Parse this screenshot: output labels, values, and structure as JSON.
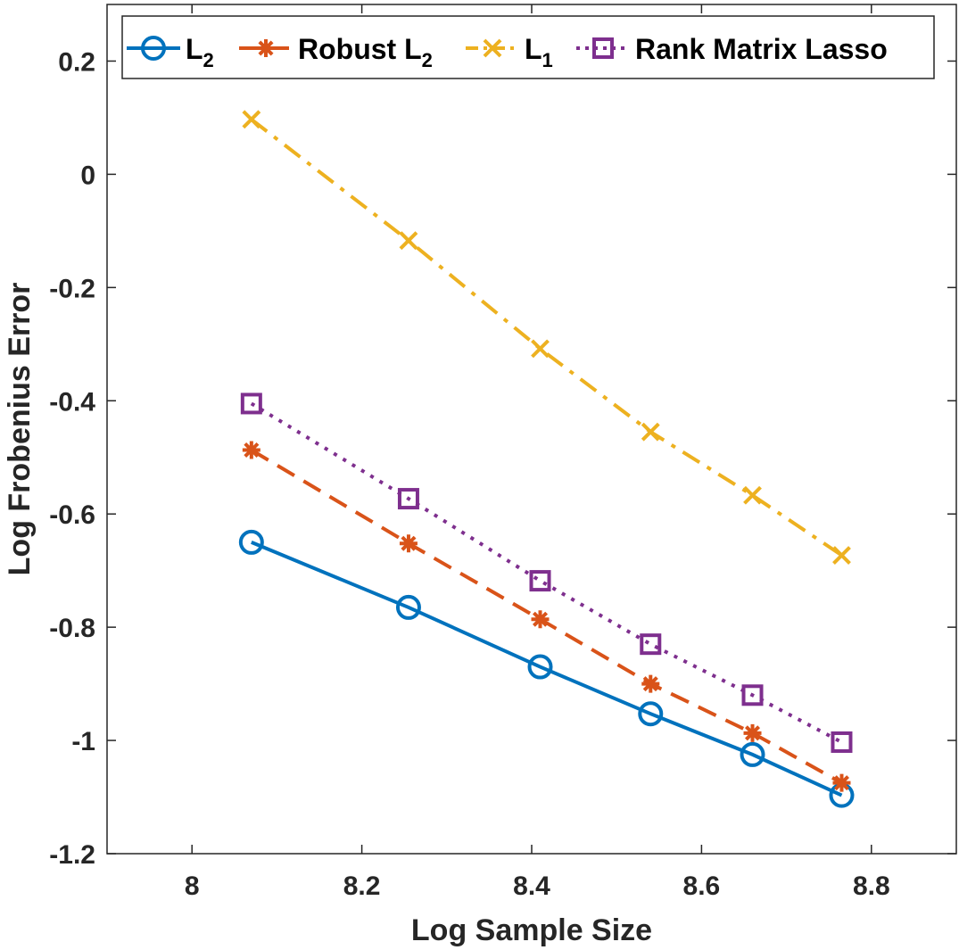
{
  "chart_data": {
    "type": "line",
    "title": "",
    "xlabel": "Log Sample Size",
    "ylabel": "Log Frobenius Error",
    "xlim": [
      7.9,
      8.9
    ],
    "ylim": [
      -1.2,
      0.3
    ],
    "xticks": [
      "8",
      "8.2",
      "8.4",
      "8.6",
      "8.8"
    ],
    "yticks": [
      "0.2",
      "0",
      "-0.2",
      "-0.4",
      "-0.6",
      "-0.8",
      "-1",
      "-1.2"
    ],
    "grid": false,
    "legend_position": "top",
    "x": [
      8.07,
      8.255,
      8.41,
      8.54,
      8.66,
      8.765
    ],
    "series": [
      {
        "name": "L",
        "subscript": "2",
        "color": "#0072BD",
        "marker": "circle",
        "line_style": "solid",
        "values": [
          -0.65,
          -0.765,
          -0.87,
          -0.953,
          -1.025,
          -1.097
        ]
      },
      {
        "name": "Robust L",
        "subscript": "2",
        "color": "#D95319",
        "marker": "asterisk",
        "line_style": "dashed",
        "values": [
          -0.487,
          -0.652,
          -0.786,
          -0.9,
          -0.987,
          -1.075
        ]
      },
      {
        "name": "L",
        "subscript": "1",
        "color": "#EDB120",
        "marker": "x",
        "line_style": "dashdot",
        "values": [
          0.097,
          -0.117,
          -0.308,
          -0.455,
          -0.567,
          -0.673
        ]
      },
      {
        "name": "Rank Matrix Lasso",
        "subscript": "",
        "color": "#7E2F8E",
        "marker": "square",
        "line_style": "dotted",
        "values": [
          -0.405,
          -0.573,
          -0.718,
          -0.83,
          -0.92,
          -1.003
        ]
      }
    ]
  }
}
